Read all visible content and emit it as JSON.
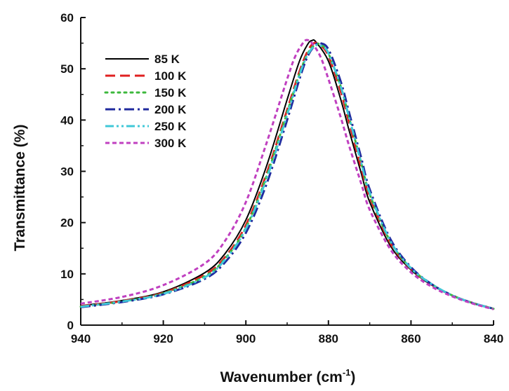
{
  "chart_data": {
    "type": "line",
    "title": "",
    "xlabel": "Wavenumber (cm",
    "xlabel_sup": "-1",
    "xlabel_close": ")",
    "ylabel": "Transmittance (%)",
    "xlim": [
      940,
      840
    ],
    "ylim": [
      0,
      60
    ],
    "x_reversed": true,
    "xticks": [
      940,
      920,
      900,
      880,
      860,
      840
    ],
    "yticks": [
      0,
      10,
      20,
      30,
      40,
      50,
      60
    ],
    "grid": false,
    "legend_position": "top-left",
    "series": [
      {
        "name": "85 K",
        "color": "#000000",
        "dash": "solid",
        "points": [
          [
            940,
            3.8
          ],
          [
            930,
            4.8
          ],
          [
            920,
            6.5
          ],
          [
            910,
            10.2
          ],
          [
            905,
            14.0
          ],
          [
            900,
            20.5
          ],
          [
            895,
            31.0
          ],
          [
            890,
            44.0
          ],
          [
            887,
            51.5
          ],
          [
            885,
            54.8
          ],
          [
            884,
            55.5
          ],
          [
            883,
            55.2
          ],
          [
            880,
            51.5
          ],
          [
            877,
            44.0
          ],
          [
            875,
            38.0
          ],
          [
            872,
            29.5
          ],
          [
            870,
            24.0
          ],
          [
            865,
            15.5
          ],
          [
            860,
            10.8
          ],
          [
            855,
            7.8
          ],
          [
            850,
            5.8
          ],
          [
            845,
            4.3
          ],
          [
            840,
            3.2
          ]
        ]
      },
      {
        "name": "100 K",
        "color": "#e02020",
        "dash": "dashed",
        "points": [
          [
            940,
            3.7
          ],
          [
            930,
            4.7
          ],
          [
            920,
            6.3
          ],
          [
            910,
            9.8
          ],
          [
            905,
            13.3
          ],
          [
            900,
            19.5
          ],
          [
            895,
            29.5
          ],
          [
            890,
            42.0
          ],
          [
            887,
            49.5
          ],
          [
            885,
            53.5
          ],
          [
            883.5,
            55.0
          ],
          [
            882,
            54.6
          ],
          [
            880,
            52.5
          ],
          [
            877,
            45.5
          ],
          [
            875,
            39.5
          ],
          [
            872,
            30.5
          ],
          [
            870,
            25.0
          ],
          [
            865,
            16.0
          ],
          [
            860,
            11.0
          ],
          [
            855,
            7.9
          ],
          [
            850,
            5.8
          ],
          [
            845,
            4.3
          ],
          [
            840,
            3.2
          ]
        ]
      },
      {
        "name": "150 K",
        "color": "#3cb83c",
        "dash": "dotted",
        "points": [
          [
            940,
            3.6
          ],
          [
            930,
            4.6
          ],
          [
            920,
            6.2
          ],
          [
            910,
            9.5
          ],
          [
            905,
            13.0
          ],
          [
            900,
            19.0
          ],
          [
            895,
            29.0
          ],
          [
            890,
            41.5
          ],
          [
            887,
            49.0
          ],
          [
            885,
            53.0
          ],
          [
            883,
            54.8
          ],
          [
            881.5,
            54.5
          ],
          [
            880,
            53.0
          ],
          [
            877,
            46.5
          ],
          [
            875,
            40.5
          ],
          [
            872,
            31.5
          ],
          [
            870,
            25.5
          ],
          [
            865,
            16.3
          ],
          [
            860,
            11.1
          ],
          [
            855,
            8.0
          ],
          [
            850,
            5.8
          ],
          [
            845,
            4.3
          ],
          [
            840,
            3.2
          ]
        ]
      },
      {
        "name": "200 K",
        "color": "#1f2a9e",
        "dash": "dashdot",
        "points": [
          [
            940,
            3.5
          ],
          [
            930,
            4.5
          ],
          [
            920,
            6.0
          ],
          [
            910,
            9.0
          ],
          [
            905,
            12.3
          ],
          [
            900,
            18.0
          ],
          [
            895,
            27.5
          ],
          [
            890,
            40.0
          ],
          [
            887,
            48.0
          ],
          [
            885,
            52.5
          ],
          [
            883,
            54.8
          ],
          [
            882,
            55.0
          ],
          [
            880,
            53.8
          ],
          [
            877,
            47.5
          ],
          [
            875,
            41.5
          ],
          [
            872,
            32.5
          ],
          [
            870,
            26.5
          ],
          [
            865,
            16.8
          ],
          [
            860,
            11.3
          ],
          [
            855,
            8.0
          ],
          [
            850,
            5.8
          ],
          [
            845,
            4.3
          ],
          [
            840,
            3.2
          ]
        ]
      },
      {
        "name": "250 K",
        "color": "#40c8d8",
        "dash": "dashdotdot",
        "points": [
          [
            940,
            3.6
          ],
          [
            930,
            4.6
          ],
          [
            920,
            6.1
          ],
          [
            910,
            9.3
          ],
          [
            905,
            12.8
          ],
          [
            900,
            18.8
          ],
          [
            895,
            28.5
          ],
          [
            890,
            41.0
          ],
          [
            887,
            48.8
          ],
          [
            885,
            52.8
          ],
          [
            883,
            54.6
          ],
          [
            881.5,
            54.3
          ],
          [
            880,
            53.0
          ],
          [
            877,
            46.5
          ],
          [
            875,
            40.5
          ],
          [
            872,
            31.5
          ],
          [
            870,
            25.8
          ],
          [
            865,
            16.4
          ],
          [
            860,
            11.1
          ],
          [
            855,
            8.0
          ],
          [
            850,
            5.8
          ],
          [
            845,
            4.3
          ],
          [
            840,
            3.2
          ]
        ]
      },
      {
        "name": "300 K",
        "color": "#c040c0",
        "dash": "shortdash",
        "points": [
          [
            940,
            4.2
          ],
          [
            930,
            5.5
          ],
          [
            920,
            7.8
          ],
          [
            910,
            12.0
          ],
          [
            905,
            16.5
          ],
          [
            900,
            24.0
          ],
          [
            895,
            35.5
          ],
          [
            890,
            48.0
          ],
          [
            888,
            52.5
          ],
          [
            886,
            55.2
          ],
          [
            885,
            55.6
          ],
          [
            884,
            55.0
          ],
          [
            882,
            52.5
          ],
          [
            880,
            48.0
          ],
          [
            877,
            40.5
          ],
          [
            875,
            35.0
          ],
          [
            872,
            27.5
          ],
          [
            870,
            22.5
          ],
          [
            865,
            14.8
          ],
          [
            860,
            10.3
          ],
          [
            855,
            7.5
          ],
          [
            850,
            5.6
          ],
          [
            845,
            4.2
          ],
          [
            840,
            3.1
          ]
        ]
      }
    ]
  }
}
